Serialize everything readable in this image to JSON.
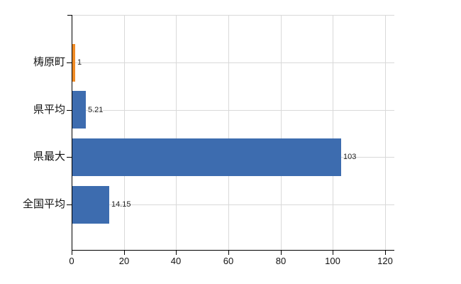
{
  "chart_data": {
    "type": "bar",
    "orientation": "horizontal",
    "title": "",
    "xlabel": "",
    "ylabel": "",
    "categories": [
      "梼原町",
      "県平均",
      "県最大",
      "全国平均"
    ],
    "values": [
      1,
      5.21,
      103,
      14.15
    ],
    "value_labels": [
      "1",
      "5.21",
      "103",
      "14.15"
    ],
    "bar_colors": [
      "#ee8a25",
      "#3d6caf",
      "#3d6caf",
      "#3d6caf"
    ],
    "xlim": [
      0,
      123
    ],
    "x_ticks": [
      0,
      20,
      40,
      60,
      80,
      100,
      120
    ],
    "x_tick_labels": [
      "0",
      "20",
      "40",
      "60",
      "80",
      "100",
      "120"
    ],
    "grid": true,
    "legend": false
  },
  "colors": {
    "bar_default": "#3d6caf",
    "bar_highlight": "#ee8a25",
    "grid": "#d9d9d9",
    "axis": "#000000",
    "text": "#111111",
    "background": "#ffffff"
  }
}
